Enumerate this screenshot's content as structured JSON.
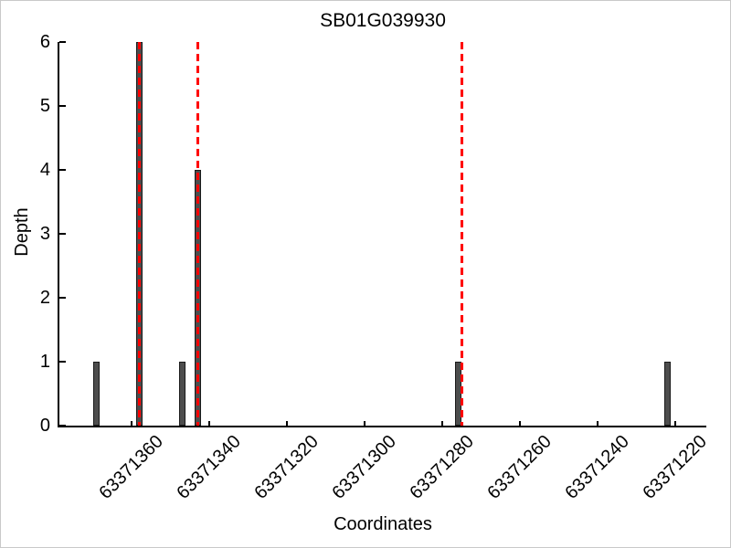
{
  "figure": {
    "title": "SB01G039930",
    "xlabel": "Coordinates",
    "ylabel": "Depth"
  },
  "chart_data": {
    "type": "bar",
    "title": "SB01G039930",
    "xlabel": "Coordinates",
    "ylabel": "Depth",
    "x_axis_reversed": true,
    "xlim": [
      63371378.6,
      63371212.0
    ],
    "ylim": [
      0,
      6
    ],
    "x_ticks": [
      63371360,
      63371340,
      63371320,
      63371300,
      63371280,
      63371260,
      63371240,
      63371220
    ],
    "y_ticks": [
      0,
      1,
      2,
      3,
      4,
      5,
      6
    ],
    "bars": [
      {
        "x": 63371369,
        "depth": 1
      },
      {
        "x": 63371358,
        "depth": 6
      },
      {
        "x": 63371347,
        "depth": 1
      },
      {
        "x": 63371343,
        "depth": 4
      },
      {
        "x": 63371276,
        "depth": 1
      },
      {
        "x": 63371222,
        "depth": 1
      }
    ],
    "vlines": [
      63371358,
      63371343,
      63371275
    ],
    "vline_style": "dashed",
    "grid": false,
    "legend": null,
    "colors": {
      "bar_fill": "#4d4d4d",
      "bar_edge": "#1a1a1a",
      "vline": "#ff0000",
      "axis": "#000000",
      "background": "#ffffff"
    }
  }
}
